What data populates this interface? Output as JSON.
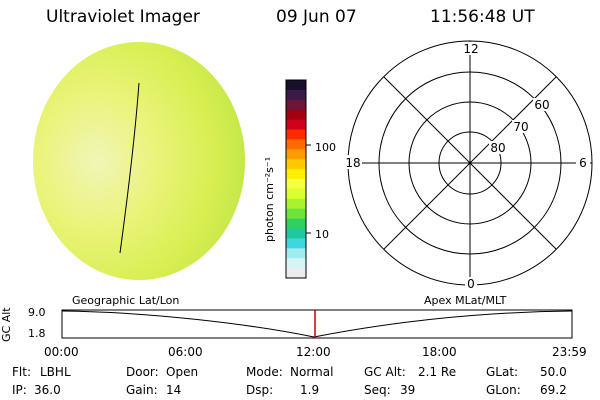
{
  "header": {
    "title": "Ultraviolet Imager",
    "date": "09 Jun 07",
    "time": "11:56:48 UT"
  },
  "colorbar": {
    "unit_label": "photon cm⁻²s⁻¹",
    "ticks": [
      "100",
      "10"
    ],
    "colors": [
      "#1a0f2a",
      "#3a1a4a",
      "#6b1538",
      "#a00010",
      "#d0001a",
      "#ff2a00",
      "#ff6a00",
      "#ff9a00",
      "#ffc800",
      "#fff000",
      "#f6ff40",
      "#d8ff2e",
      "#a8f230",
      "#6ee33a",
      "#30d060",
      "#20c8a0",
      "#40d6e0",
      "#a0ecf0",
      "#d6f4f6",
      "#ececec"
    ]
  },
  "polar": {
    "clock_labels": {
      "top": "12",
      "bottom": "0",
      "left": "18",
      "right": "6"
    },
    "lat_labels": [
      "60",
      "70",
      "80"
    ]
  },
  "timeline": {
    "left_title": "Geographic Lat/Lon",
    "right_title": "Apex MLat/MLT",
    "axis_title": "GC Alt",
    "y_top": "9.0",
    "y_bottom": "1.8",
    "x_ticks": [
      "00:00",
      "06:00",
      "12:00",
      "18:00",
      "23:59"
    ],
    "marker_color": "#cc0000"
  },
  "status": {
    "flt_label": "Flt:",
    "flt_value": "LBHL",
    "ip_label": "IP:",
    "ip_value": "36.0",
    "door_label": "Door:",
    "door_value": "Open",
    "gain_label": "Gain:",
    "gain_value": "14",
    "mode_label": "Mode:",
    "mode_value": "Normal",
    "dsp_label": "Dsp:",
    "dsp_value": "1.9",
    "gcalt_label": "GC Alt:",
    "gcalt_value": "2.1 Re",
    "seq_label": "Seq:",
    "seq_value": "39",
    "glat_label": "GLat:",
    "glat_value": "50.0",
    "glon_label": "GLon:",
    "glon_value": "69.2"
  }
}
